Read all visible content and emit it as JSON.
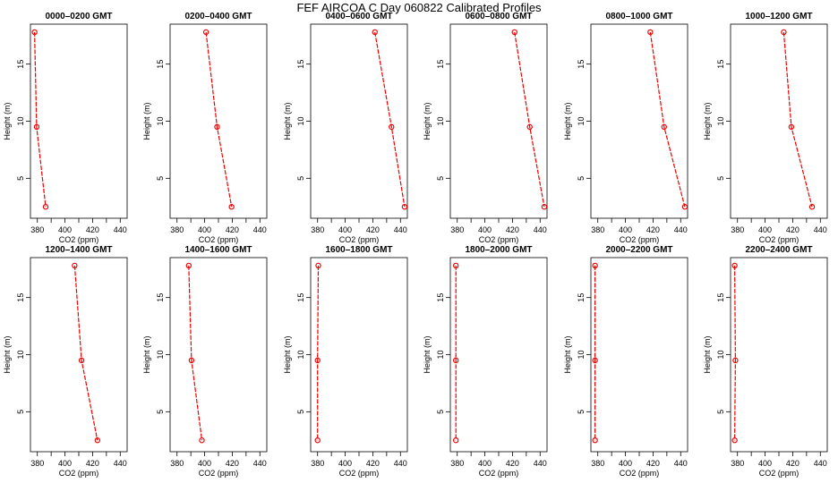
{
  "figure": {
    "title": "FEF  AIRCOA C  Day 060822  Calibrated Profiles"
  },
  "chart_data": [
    {
      "type": "line",
      "title": "0000–0200 GMT",
      "xlabel": "CO2 (ppm)",
      "ylabel": "Height (m)",
      "xlim": [
        375,
        445
      ],
      "ylim": [
        1.5,
        18.5
      ],
      "xticks": [
        380,
        400,
        420,
        440
      ],
      "yticks": [
        5,
        10,
        15
      ],
      "grid": false,
      "series": [
        {
          "x": [
            378,
            379.5,
            386
          ],
          "y": [
            17.8,
            9.5,
            2.5
          ]
        }
      ]
    },
    {
      "type": "line",
      "title": "0200–0400 GMT",
      "xlabel": "CO2 (ppm)",
      "ylabel": "Height (m)",
      "xlim": [
        375,
        445
      ],
      "ylim": [
        1.5,
        18.5
      ],
      "xticks": [
        380,
        400,
        420,
        440
      ],
      "yticks": [
        5,
        10,
        15
      ],
      "grid": false,
      "series": [
        {
          "x": [
            401,
            409,
            419.5
          ],
          "y": [
            17.8,
            9.5,
            2.5
          ]
        }
      ]
    },
    {
      "type": "line",
      "title": "0400–0600 GMT",
      "xlabel": "CO2 (ppm)",
      "ylabel": "Height (m)",
      "xlim": [
        375,
        445
      ],
      "ylim": [
        1.5,
        18.5
      ],
      "xticks": [
        380,
        400,
        420,
        440
      ],
      "yticks": [
        5,
        10,
        15
      ],
      "grid": false,
      "series": [
        {
          "x": [
            421.5,
            433.5,
            443
          ],
          "y": [
            17.8,
            9.5,
            2.5
          ]
        }
      ]
    },
    {
      "type": "line",
      "title": "0600–0800 GMT",
      "xlabel": "CO2 (ppm)",
      "ylabel": "Height (m)",
      "xlim": [
        375,
        445
      ],
      "ylim": [
        1.5,
        18.5
      ],
      "xticks": [
        380,
        400,
        420,
        440
      ],
      "yticks": [
        5,
        10,
        15
      ],
      "grid": false,
      "series": [
        {
          "x": [
            421.5,
            432.5,
            443
          ],
          "y": [
            17.8,
            9.5,
            2.5
          ]
        }
      ]
    },
    {
      "type": "line",
      "title": "0800–1000 GMT",
      "xlabel": "CO2 (ppm)",
      "ylabel": "Height (m)",
      "xlim": [
        375,
        445
      ],
      "ylim": [
        1.5,
        18.5
      ],
      "xticks": [
        380,
        400,
        420,
        440
      ],
      "yticks": [
        5,
        10,
        15
      ],
      "grid": false,
      "series": [
        {
          "x": [
            418,
            428,
            443
          ],
          "y": [
            17.8,
            9.5,
            2.5
          ]
        }
      ]
    },
    {
      "type": "line",
      "title": "1000–1200 GMT",
      "xlabel": "CO2 (ppm)",
      "ylabel": "Height (m)",
      "xlim": [
        375,
        445
      ],
      "ylim": [
        1.5,
        18.5
      ],
      "xticks": [
        380,
        400,
        420,
        440
      ],
      "yticks": [
        5,
        10,
        15
      ],
      "grid": false,
      "series": [
        {
          "x": [
            413.5,
            419,
            434
          ],
          "y": [
            17.8,
            9.5,
            2.5
          ]
        }
      ]
    },
    {
      "type": "line",
      "title": "1200–1400 GMT",
      "xlabel": "CO2 (ppm)",
      "ylabel": "Height (m)",
      "xlim": [
        375,
        445
      ],
      "ylim": [
        1.5,
        18.5
      ],
      "xticks": [
        380,
        400,
        420,
        440
      ],
      "yticks": [
        5,
        10,
        15
      ],
      "grid": false,
      "series": [
        {
          "x": [
            407,
            412,
            423.5
          ],
          "y": [
            17.8,
            9.5,
            2.5
          ]
        }
      ]
    },
    {
      "type": "line",
      "title": "1400–1600 GMT",
      "xlabel": "CO2 (ppm)",
      "ylabel": "Height (m)",
      "xlim": [
        375,
        445
      ],
      "ylim": [
        1.5,
        18.5
      ],
      "xticks": [
        380,
        400,
        420,
        440
      ],
      "yticks": [
        5,
        10,
        15
      ],
      "grid": false,
      "series": [
        {
          "x": [
            388.5,
            390.5,
            398
          ],
          "y": [
            17.8,
            9.5,
            2.5
          ]
        }
      ]
    },
    {
      "type": "line",
      "title": "1600–1800 GMT",
      "xlabel": "CO2 (ppm)",
      "ylabel": "Height (m)",
      "xlim": [
        375,
        445
      ],
      "ylim": [
        1.5,
        18.5
      ],
      "xticks": [
        380,
        400,
        420,
        440
      ],
      "yticks": [
        5,
        10,
        15
      ],
      "grid": false,
      "series": [
        {
          "x": [
            380.5,
            380,
            380
          ],
          "y": [
            17.8,
            9.5,
            2.5
          ]
        }
      ]
    },
    {
      "type": "line",
      "title": "1800–2000 GMT",
      "xlabel": "CO2 (ppm)",
      "ylabel": "Height (m)",
      "xlim": [
        375,
        445
      ],
      "ylim": [
        1.5,
        18.5
      ],
      "xticks": [
        380,
        400,
        420,
        440
      ],
      "yticks": [
        5,
        10,
        15
      ],
      "grid": false,
      "series": [
        {
          "x": [
            379,
            379,
            379
          ],
          "y": [
            17.8,
            9.5,
            2.5
          ]
        }
      ]
    },
    {
      "type": "line",
      "title": "2000–2200 GMT",
      "xlabel": "CO2 (ppm)",
      "ylabel": "Height (m)",
      "xlim": [
        375,
        445
      ],
      "ylim": [
        1.5,
        18.5
      ],
      "xticks": [
        380,
        400,
        420,
        440
      ],
      "yticks": [
        5,
        10,
        15
      ],
      "grid": false,
      "series": [
        {
          "x": [
            378,
            378,
            378
          ],
          "y": [
            17.8,
            9.5,
            2.5
          ]
        }
      ]
    },
    {
      "type": "line",
      "title": "2200–2400 GMT",
      "xlabel": "CO2 (ppm)",
      "ylabel": "Height (m)",
      "xlim": [
        375,
        445
      ],
      "ylim": [
        1.5,
        18.5
      ],
      "xticks": [
        380,
        400,
        420,
        440
      ],
      "yticks": [
        5,
        10,
        15
      ],
      "grid": false,
      "series": [
        {
          "x": [
            378,
            378.5,
            378
          ],
          "y": [
            17.8,
            9.5,
            2.5
          ]
        }
      ]
    }
  ]
}
